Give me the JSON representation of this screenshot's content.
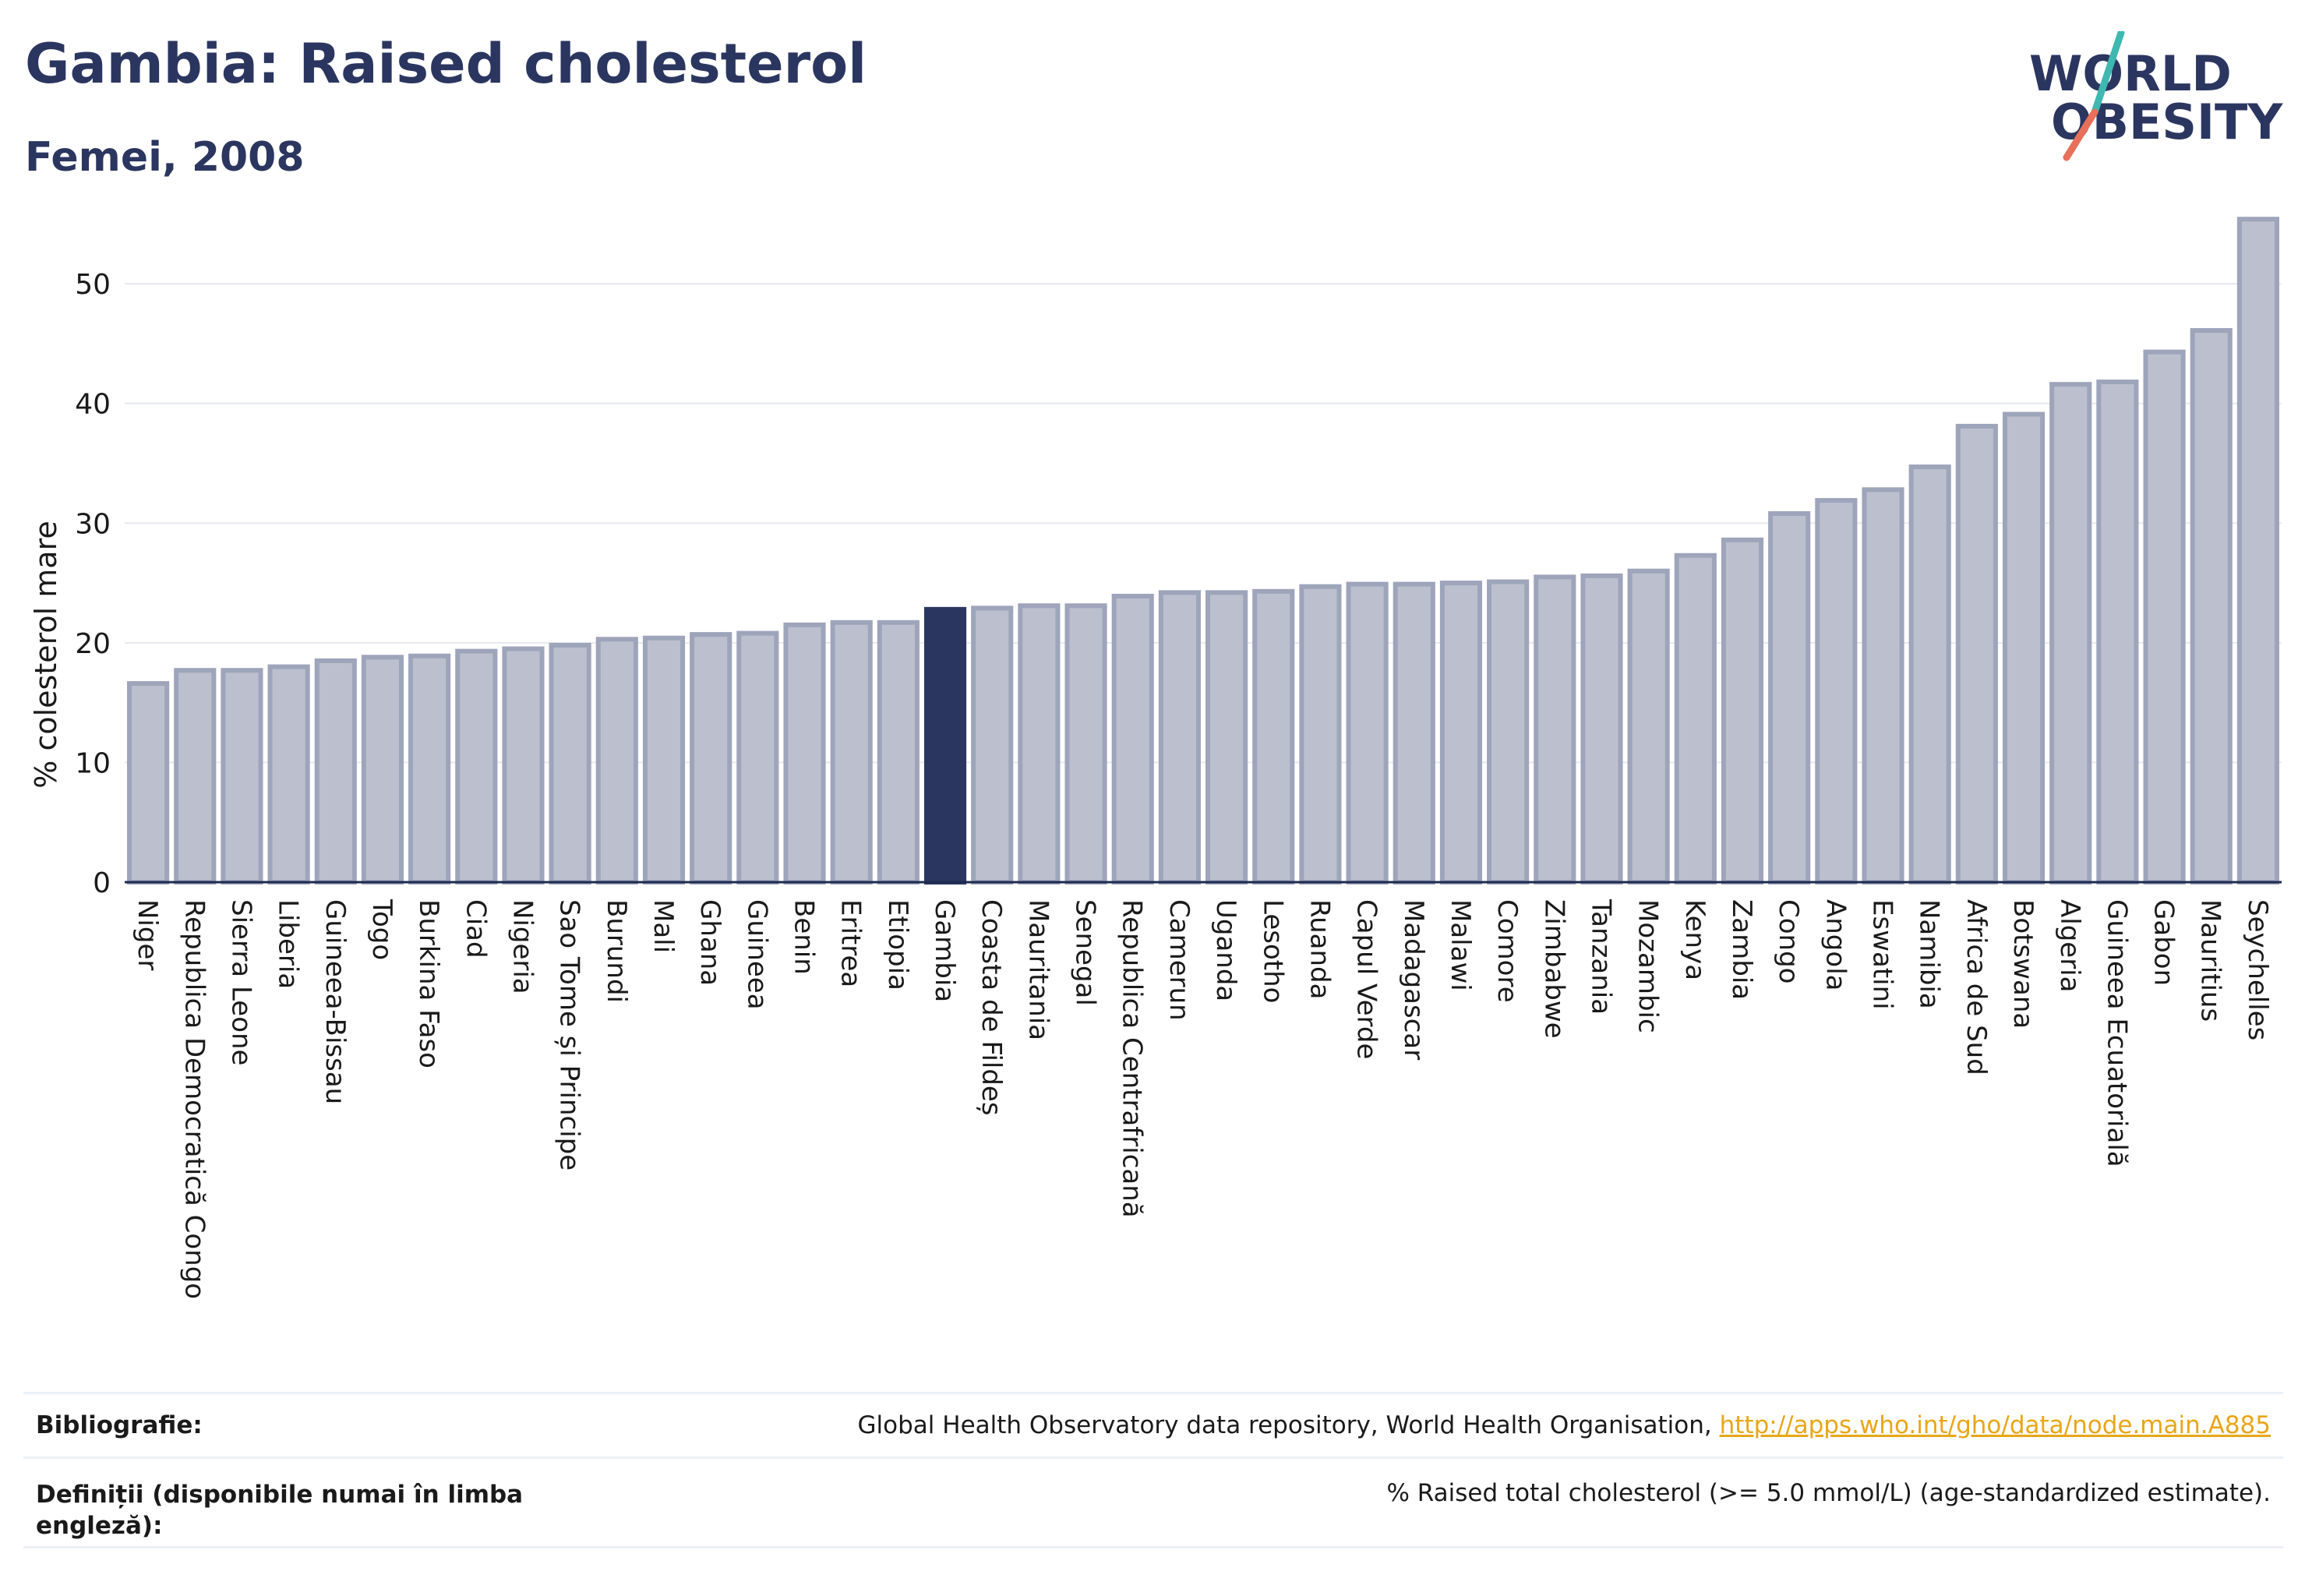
{
  "title": "Gambia: Raised cholesterol",
  "subtitle": "Femei, 2008",
  "logo": {
    "line1": "WORLD",
    "line2": "OBESITY"
  },
  "colors": {
    "bar": "#bcc0ce",
    "bar_stroke": "#9ea4ba",
    "highlight": "#2b3660",
    "grid": "#e6e8ef",
    "axis": "#1f2a50",
    "link": "#e8a617"
  },
  "chart_data": {
    "type": "bar",
    "ylabel": "% colesterol mare",
    "xlabel": "",
    "ylim": [
      0,
      56
    ],
    "yticks": [
      0,
      10,
      20,
      30,
      40,
      50
    ],
    "grid": true,
    "highlight": "Gambia",
    "categories": [
      "Niger",
      "Republica Democratică Congo",
      "Sierra Leone",
      "Liberia",
      "Guineea-Bissau",
      "Togo",
      "Burkina Faso",
      "Ciad",
      "Nigeria",
      "Sao Tome și Principe",
      "Burundi",
      "Mali",
      "Ghana",
      "Guineea",
      "Benin",
      "Eritrea",
      "Etiopia",
      "Gambia",
      "Coasta de Fildeș",
      "Mauritania",
      "Senegal",
      "Republica Centrafricană",
      "Camerun",
      "Uganda",
      "Lesotho",
      "Ruanda",
      "Capul Verde",
      "Madagascar",
      "Malawi",
      "Comore",
      "Zimbabwe",
      "Tanzania",
      "Mozambic",
      "Kenya",
      "Zambia",
      "Congo",
      "Angola",
      "Eswatini",
      "Namibia",
      "Africa de Sud",
      "Botswana",
      "Algeria",
      "Guineea Ecuatorială",
      "Gabon",
      "Mauritius",
      "Seychelles"
    ],
    "values": [
      16.6,
      17.7,
      17.7,
      18.0,
      18.5,
      18.8,
      18.9,
      19.3,
      19.5,
      19.8,
      20.3,
      20.4,
      20.7,
      20.8,
      21.5,
      21.7,
      21.7,
      22.8,
      22.9,
      23.1,
      23.1,
      23.9,
      24.2,
      24.2,
      24.3,
      24.7,
      24.9,
      24.9,
      25.0,
      25.1,
      25.5,
      25.6,
      26.0,
      27.3,
      28.6,
      30.8,
      31.9,
      32.8,
      34.7,
      38.1,
      39.1,
      41.6,
      41.8,
      44.3,
      46.1,
      55.4
    ]
  },
  "footer": {
    "biblio_label": "Bibliografie:",
    "biblio_text": "Global Health Observatory data repository, World Health Organisation, ",
    "biblio_link": "http://apps.who.int/gho/data/node.main.A885",
    "def_label": "Definiții (disponibile numai în limba engleză):",
    "def_text": "% Raised total cholesterol (>= 5.0 mmol/L) (age-standardized estimate)."
  }
}
